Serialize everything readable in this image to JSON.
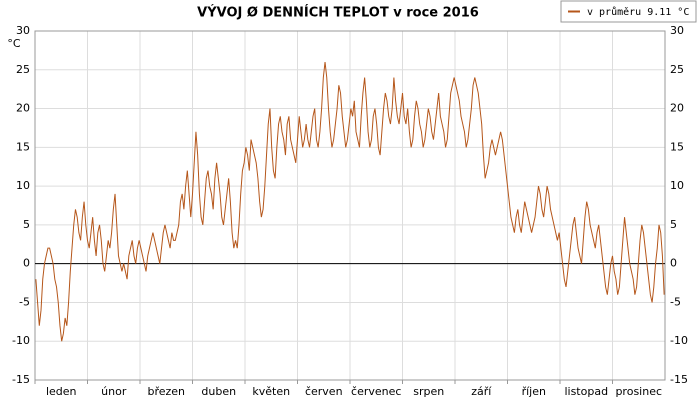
{
  "chart_data": {
    "type": "line",
    "title": "VÝVOJ Ø DENNÍCH TEPLOT v roce 2016",
    "y_label": "°C",
    "x_tick_labels": [
      "leden",
      "únor",
      "březen",
      "duben",
      "květen",
      "červen",
      "červenec",
      "srpen",
      "září",
      "říjen",
      "listopad",
      "prosinec"
    ],
    "ylim": [
      -15,
      30
    ],
    "yticks": [
      30,
      25,
      20,
      15,
      10,
      5,
      0,
      -5,
      -10,
      -15
    ],
    "grid": true,
    "legend": "top-right",
    "series": [
      {
        "name": "v průměru 9.11 °C",
        "color": "#b5561a",
        "values": [
          -2,
          -5,
          -8,
          -6,
          -2,
          0,
          1,
          2,
          2,
          1,
          0,
          -2,
          -3,
          -5,
          -8,
          -10,
          -9,
          -7,
          -8,
          -5,
          -1,
          2,
          5,
          7,
          6,
          4,
          3,
          6,
          8,
          5,
          3,
          2,
          4,
          6,
          3,
          1,
          4,
          5,
          3,
          0,
          -1,
          1,
          3,
          2,
          4,
          7,
          9,
          5,
          1,
          0,
          -1,
          0,
          -1,
          -2,
          1,
          2,
          3,
          1,
          0,
          2,
          3,
          2,
          1,
          0,
          -1,
          1,
          2,
          3,
          4,
          3,
          2,
          1,
          0,
          2,
          4,
          5,
          4,
          3,
          2,
          4,
          3,
          3,
          4,
          5,
          8,
          9,
          7,
          10,
          12,
          9,
          6,
          9,
          13,
          17,
          14,
          9,
          6,
          5,
          8,
          11,
          12,
          10,
          9,
          7,
          11,
          13,
          11,
          9,
          6,
          5,
          7,
          9,
          11,
          8,
          4,
          2,
          3,
          2,
          5,
          9,
          12,
          13,
          15,
          14,
          12,
          16,
          15,
          14,
          13,
          11,
          8,
          6,
          7,
          10,
          14,
          18,
          20,
          15,
          12,
          11,
          15,
          18,
          19,
          17,
          16,
          14,
          18,
          19,
          16,
          15,
          14,
          13,
          16,
          19,
          17,
          15,
          16,
          18,
          16,
          15,
          17,
          19,
          20,
          16,
          15,
          17,
          20,
          24,
          26,
          24,
          20,
          17,
          15,
          16,
          18,
          20,
          23,
          22,
          19,
          17,
          15,
          16,
          18,
          20,
          19,
          21,
          17,
          16,
          15,
          19,
          22,
          24,
          21,
          17,
          15,
          16,
          19,
          20,
          18,
          15,
          14,
          17,
          20,
          22,
          21,
          19,
          18,
          20,
          24,
          21,
          19,
          18,
          20,
          22,
          19,
          18,
          20,
          17,
          15,
          16,
          19,
          21,
          20,
          18,
          17,
          15,
          16,
          18,
          20,
          19,
          17,
          16,
          18,
          20,
          22,
          19,
          18,
          17,
          15,
          16,
          19,
          22,
          23,
          24,
          23,
          22,
          21,
          19,
          18,
          17,
          15,
          16,
          18,
          20,
          23,
          24,
          23,
          22,
          20,
          18,
          14,
          11,
          12,
          13,
          15,
          16,
          15,
          14,
          15,
          16,
          17,
          16,
          14,
          12,
          10,
          8,
          6,
          5,
          4,
          6,
          7,
          5,
          4,
          6,
          8,
          7,
          6,
          5,
          4,
          5,
          6,
          8,
          10,
          9,
          7,
          6,
          8,
          10,
          9,
          7,
          6,
          5,
          4,
          3,
          4,
          2,
          0,
          -2,
          -3,
          -1,
          1,
          3,
          5,
          6,
          4,
          2,
          1,
          0,
          3,
          6,
          8,
          7,
          5,
          4,
          3,
          2,
          4,
          5,
          3,
          1,
          -1,
          -3,
          -4,
          -2,
          0,
          1,
          -1,
          -2,
          -4,
          -3,
          0,
          3,
          6,
          4,
          2,
          0,
          -1,
          -2,
          -4,
          -3,
          0,
          3,
          5,
          4,
          2,
          0,
          -2,
          -4,
          -5,
          -3,
          0,
          2,
          5,
          4,
          1,
          -4
        ]
      }
    ]
  }
}
